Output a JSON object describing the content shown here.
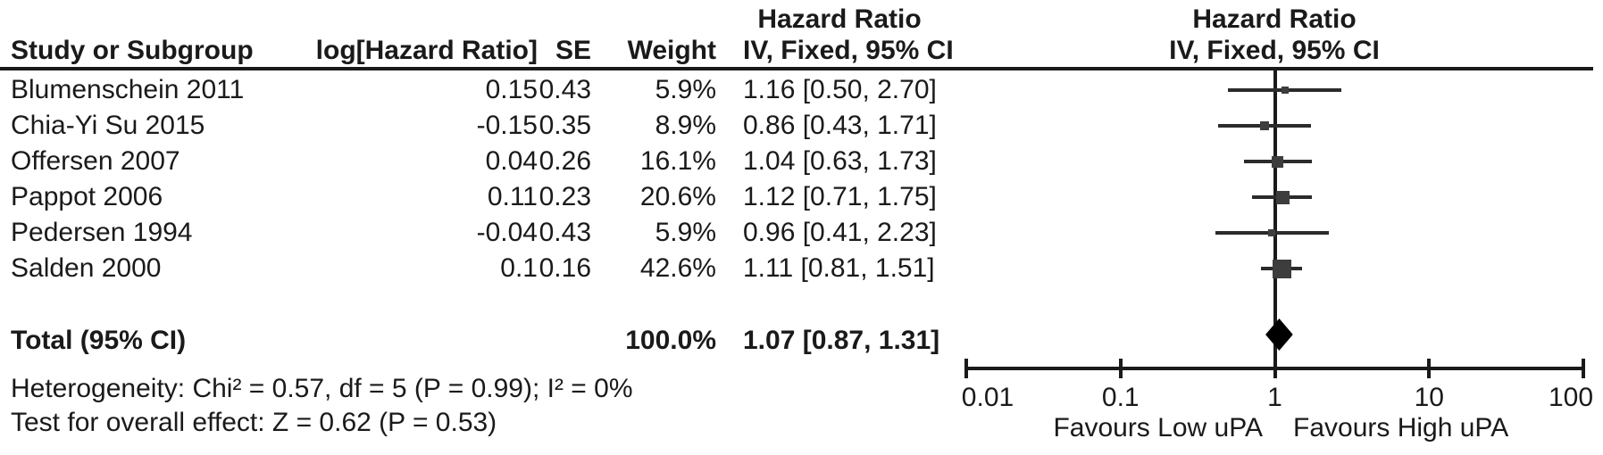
{
  "headers": {
    "hazard_ratio": "Hazard Ratio",
    "ci_method": "IV, Fixed, 95% CI",
    "study": "Study or Subgroup",
    "log_hr": "log[Hazard Ratio]",
    "se": "SE",
    "weight": "Weight"
  },
  "total": {
    "label": "Total (95% CI)",
    "weight_text": "100.0%",
    "ci_text": "1.07 [0.87, 1.31]"
  },
  "footer": {
    "heterogeneity": "Heterogeneity: Chi² = 0.57, df = 5 (P = 0.99); I² = 0%",
    "overall_effect": "Test for overall effect: Z = 0.62 (P = 0.53)"
  },
  "colors": {
    "text": "#1a1a1a",
    "marker": "#3d3d3d",
    "ci_line": "#2b2b2b",
    "diamond": "#000000",
    "axis": "#1a1a1a"
  },
  "chart_data": {
    "type": "forest",
    "title": "Hazard Ratio — IV, Fixed, 95% CI",
    "x_scale": "log10",
    "x_ticks": [
      0.01,
      0.1,
      1,
      10,
      100
    ],
    "x_tick_labels": [
      "0.01",
      "0.1",
      "1",
      "10",
      "100"
    ],
    "x_range": [
      0.01,
      100
    ],
    "null_line": 1,
    "favours_left": "Favours Low uPA",
    "favours_right": "Favours High uPA",
    "studies": [
      {
        "name": "Blumenschein 2011",
        "log_hr_text": "0.15",
        "se_text": "0.43",
        "weight_text": "5.9%",
        "ci_text": "1.16 [0.50, 2.70]",
        "hr": 1.16,
        "ci_low": 0.5,
        "ci_high": 2.7,
        "weight_pct": 5.9
      },
      {
        "name": "Chia-Yi Su 2015",
        "log_hr_text": "-0.15",
        "se_text": "0.35",
        "weight_text": "8.9%",
        "ci_text": "0.86 [0.43, 1.71]",
        "hr": 0.86,
        "ci_low": 0.43,
        "ci_high": 1.71,
        "weight_pct": 8.9
      },
      {
        "name": "Offersen 2007",
        "log_hr_text": "0.04",
        "se_text": "0.26",
        "weight_text": "16.1%",
        "ci_text": "1.04 [0.63, 1.73]",
        "hr": 1.04,
        "ci_low": 0.63,
        "ci_high": 1.73,
        "weight_pct": 16.1
      },
      {
        "name": "Pappot 2006",
        "log_hr_text": "0.11",
        "se_text": "0.23",
        "weight_text": "20.6%",
        "ci_text": "1.12 [0.71, 1.75]",
        "hr": 1.12,
        "ci_low": 0.71,
        "ci_high": 1.75,
        "weight_pct": 20.6
      },
      {
        "name": "Pedersen 1994",
        "log_hr_text": "-0.04",
        "se_text": "0.43",
        "weight_text": "5.9%",
        "ci_text": "0.96 [0.41, 2.23]",
        "hr": 0.96,
        "ci_low": 0.41,
        "ci_high": 2.23,
        "weight_pct": 5.9
      },
      {
        "name": "Salden 2000",
        "log_hr_text": "0.1",
        "se_text": "0.16",
        "weight_text": "42.6%",
        "ci_text": "1.11 [0.81, 1.51]",
        "hr": 1.11,
        "ci_low": 0.81,
        "ci_high": 1.51,
        "weight_pct": 42.6
      }
    ],
    "total": {
      "hr": 1.07,
      "ci_low": 0.87,
      "ci_high": 1.31,
      "weight_pct": 100.0
    },
    "heterogeneity": {
      "chi2": 0.57,
      "df": 5,
      "p": 0.99,
      "i2_pct": 0
    },
    "overall_effect": {
      "z": 0.62,
      "p": 0.53
    }
  }
}
